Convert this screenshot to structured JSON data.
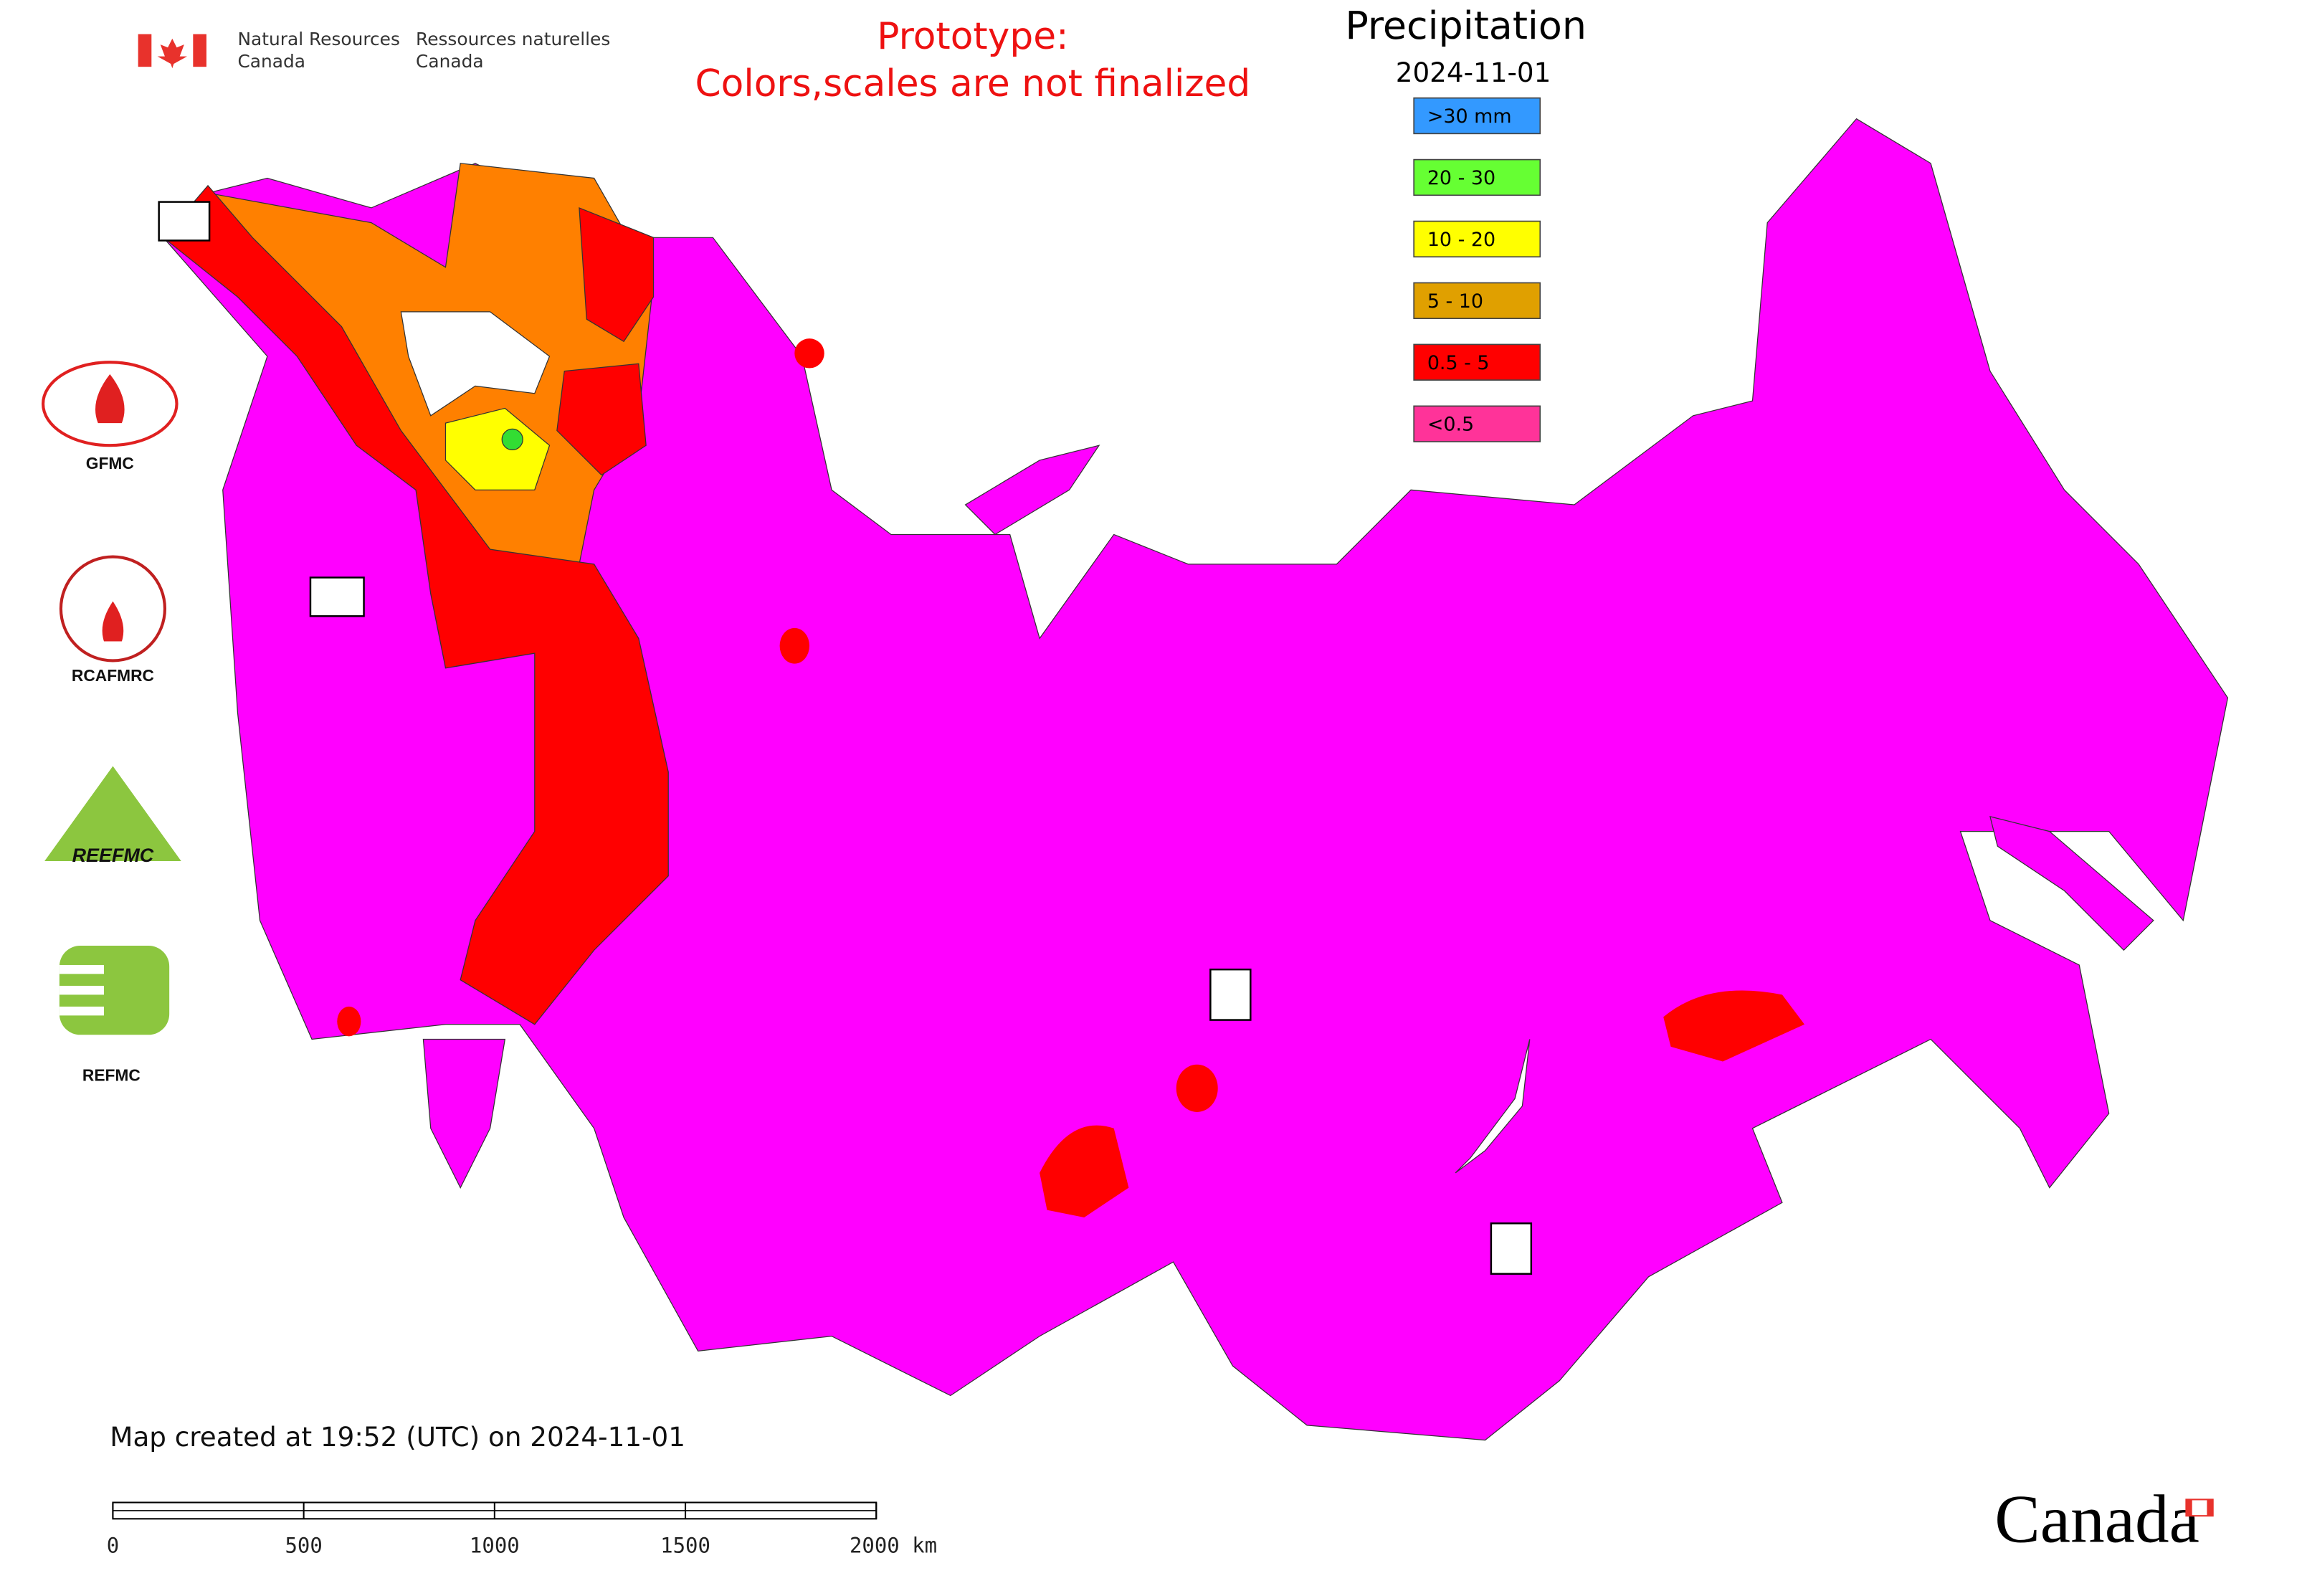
{
  "header": {
    "agency_en": [
      "Natural Resources",
      "Canada"
    ],
    "agency_fr": [
      "Ressources naturelles",
      "Canada"
    ]
  },
  "notice": [
    "Prototype:",
    "Colors,scales are not finalized"
  ],
  "legend": {
    "title": "Precipitation",
    "date": "2024-11-01",
    "items": [
      {
        "label": ">30 mm",
        "color": "#3399ff"
      },
      {
        "label": "20 - 30",
        "color": "#66ff33"
      },
      {
        "label": "10 - 20",
        "color": "#ffff00"
      },
      {
        "label": "5 - 10",
        "color": "#e0a000"
      },
      {
        "label": "0.5 - 5",
        "color": "#ff0000"
      },
      {
        "label": "<0.5",
        "color": "#ff3399"
      }
    ]
  },
  "logos": [
    "GFMC",
    "RCAFMRC",
    "REEFMC",
    "REFMC"
  ],
  "footer": {
    "created": "Map created at 19:52 (UTC) on 2024-11-01",
    "scale_bar": {
      "range": [
        0,
        2000
      ],
      "ticks": [
        0,
        500,
        1000,
        1500,
        {
          "value": 2000,
          "label": "2000 km"
        }
      ]
    },
    "wordmark": "Canada"
  }
}
